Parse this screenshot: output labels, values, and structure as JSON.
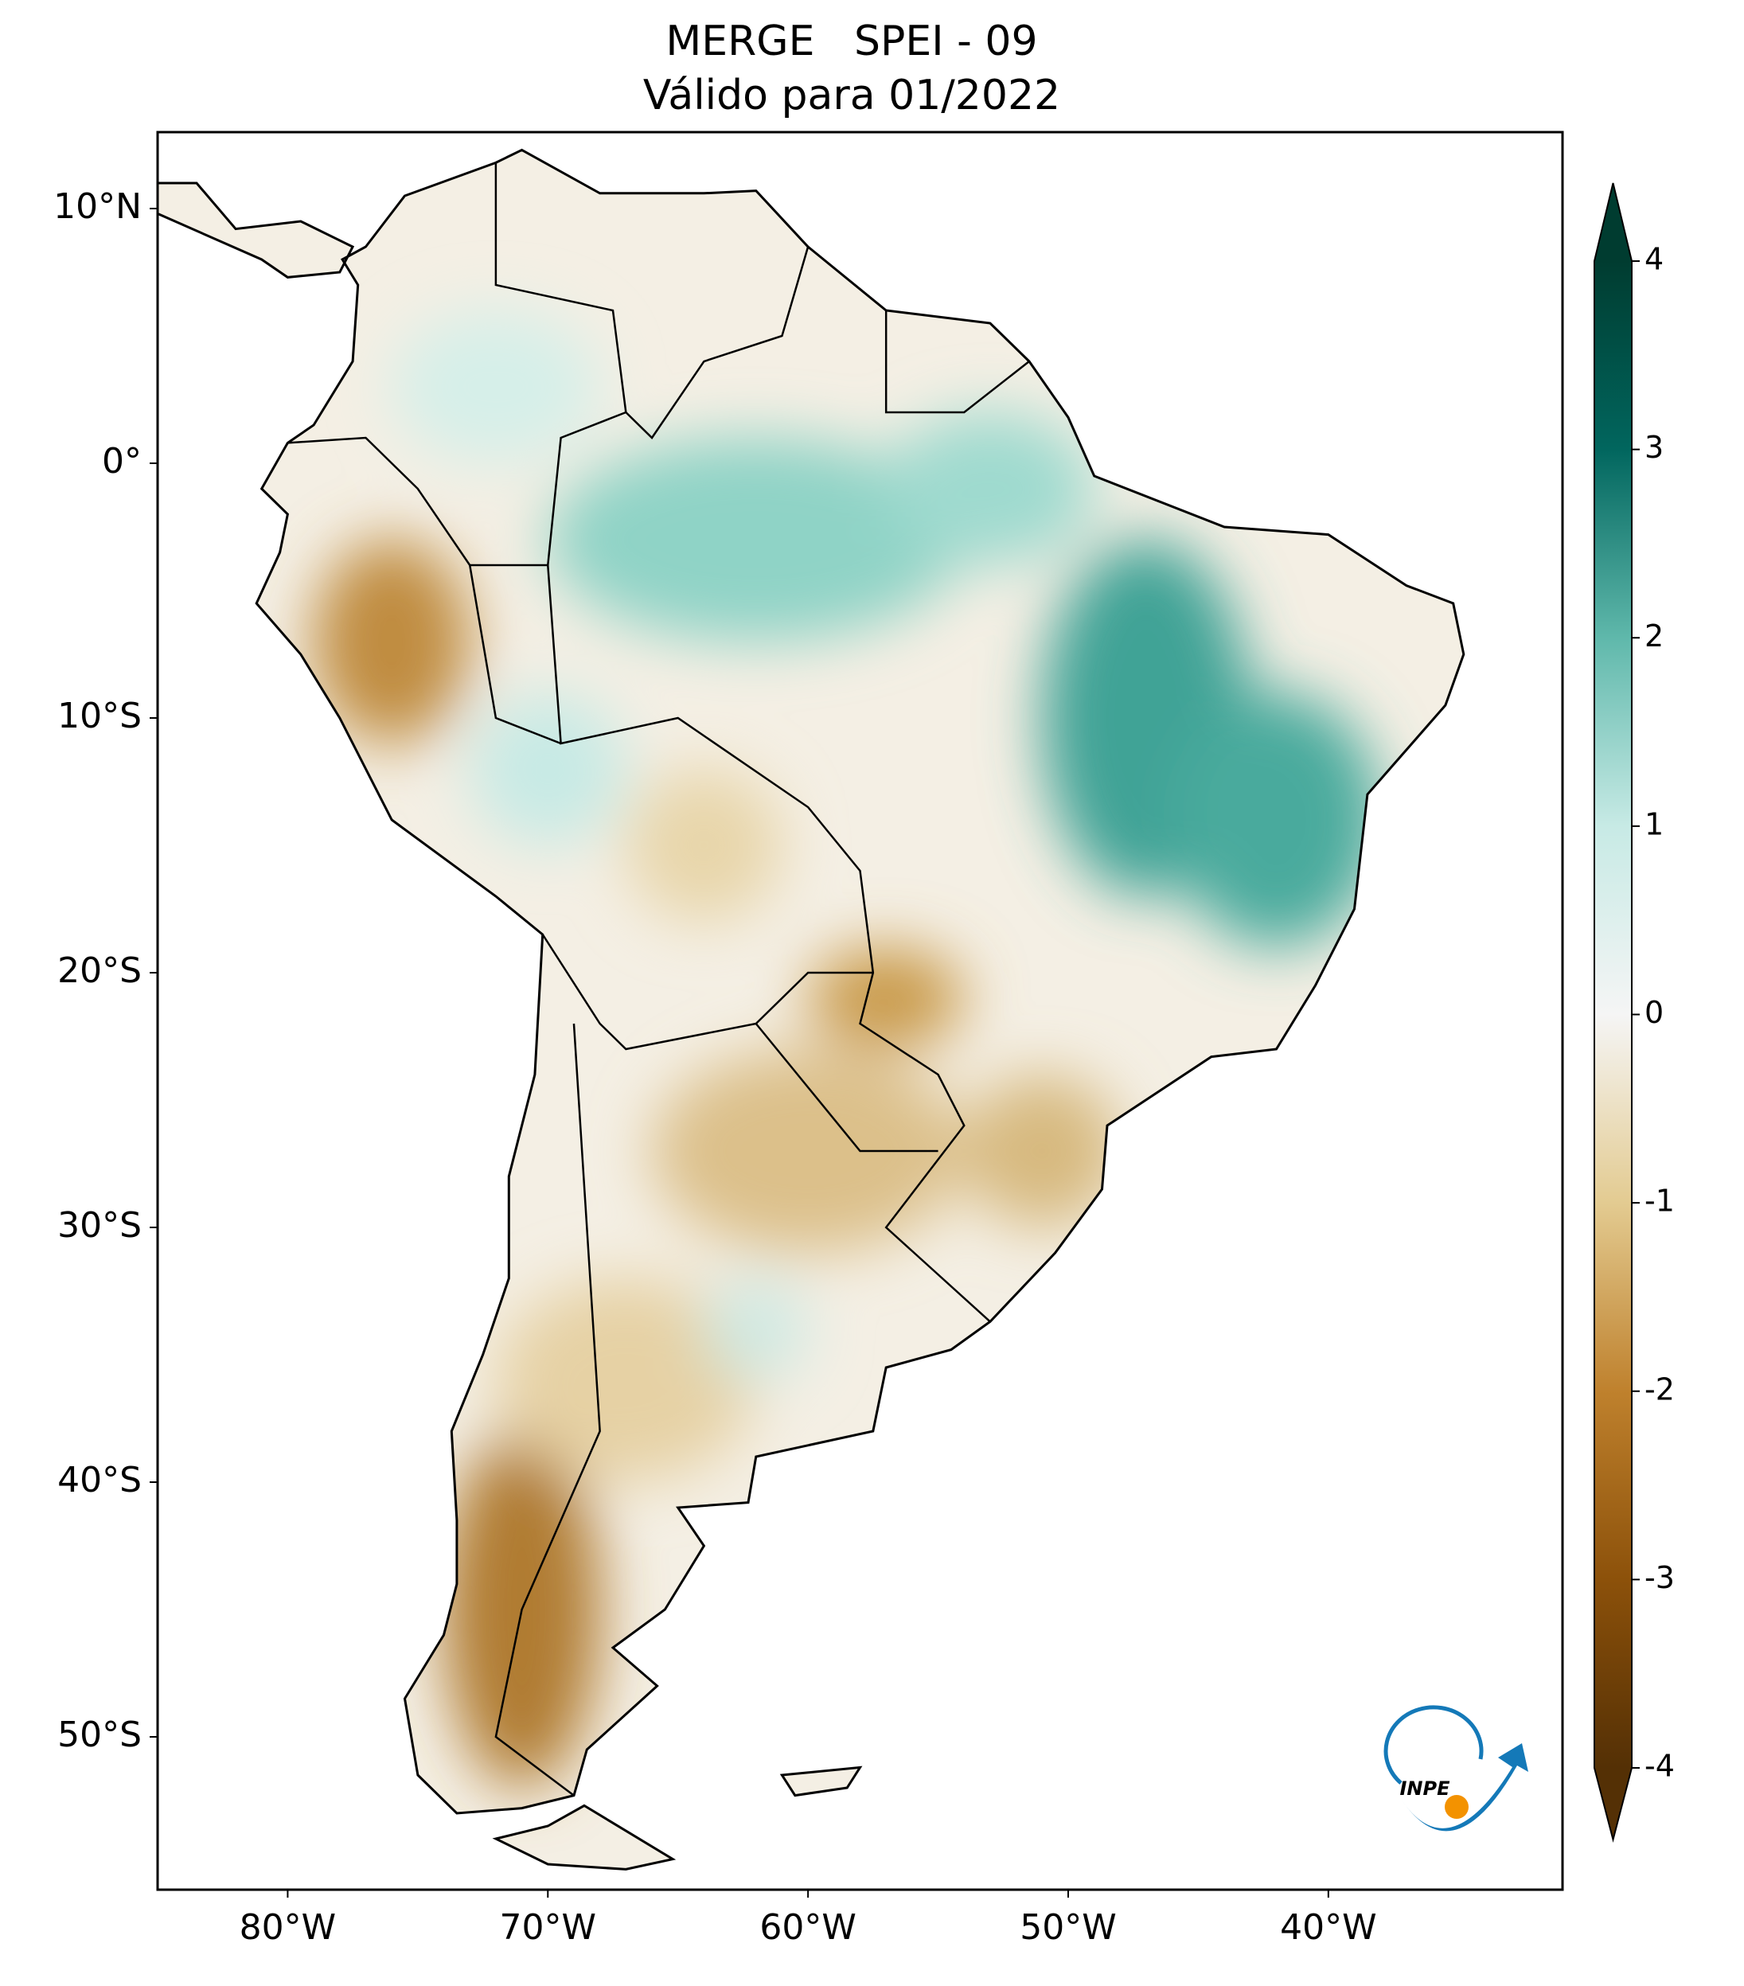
{
  "title": [
    "MERGE   SPEI - 09",
    "Válido para 01/2022"
  ],
  "map": {
    "xlim": [
      -85,
      -31
    ],
    "ylim": [
      -56,
      13
    ],
    "xticks": [
      {
        "value": -80,
        "label": "80°W"
      },
      {
        "value": -70,
        "label": "70°W"
      },
      {
        "value": -60,
        "label": "60°W"
      },
      {
        "value": -50,
        "label": "50°W"
      },
      {
        "value": -40,
        "label": "40°W"
      }
    ],
    "yticks": [
      {
        "value": 10,
        "label": "10°N"
      },
      {
        "value": 0,
        "label": "0°"
      },
      {
        "value": -10,
        "label": "10°S"
      },
      {
        "value": -20,
        "label": "20°S"
      },
      {
        "value": -30,
        "label": "30°S"
      },
      {
        "value": -40,
        "label": "40°S"
      },
      {
        "value": -50,
        "label": "50°S"
      }
    ]
  },
  "colorbar": {
    "lim": [
      -4,
      4
    ],
    "ticks": [
      -4,
      -3,
      -2,
      -1,
      0,
      1,
      2,
      3,
      4
    ],
    "colors": [
      "#543005",
      "#8c510a",
      "#bf812d",
      "#e3cb91",
      "#f5f5f5",
      "#c7eae5",
      "#5fb8ab",
      "#01665e",
      "#003c30"
    ]
  },
  "logo": "INPE"
}
